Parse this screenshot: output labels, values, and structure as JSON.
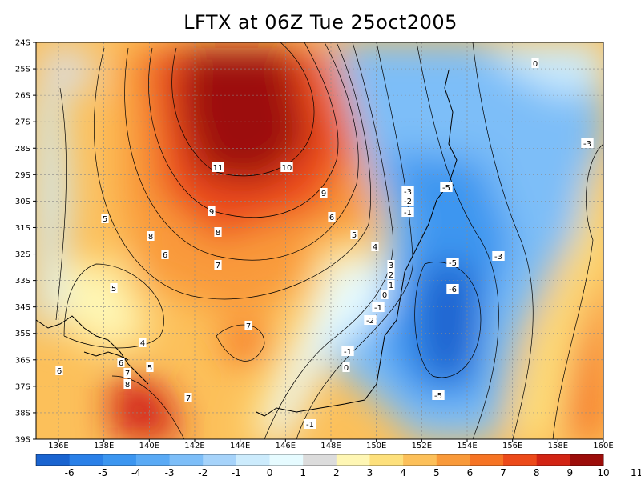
{
  "title": "LFTX at 06Z Tue 25oct2005",
  "axes": {
    "lat_labels": [
      "24S",
      "25S",
      "26S",
      "27S",
      "28S",
      "29S",
      "30S",
      "31S",
      "32S",
      "33S",
      "34S",
      "35S",
      "36S",
      "37S",
      "38S",
      "39S"
    ],
    "lon_labels": [
      "136E",
      "138E",
      "140E",
      "142E",
      "144E",
      "146E",
      "148E",
      "150E",
      "152E",
      "154E",
      "156E",
      "158E",
      "160E"
    ]
  },
  "colorbar": {
    "colors": [
      "#1a64d0",
      "#2a80e8",
      "#3c96f0",
      "#5aaaf5",
      "#7dbef8",
      "#a6d3fa",
      "#ccebfc",
      "#e6fbff",
      "#dcdcdc",
      "#fef6b4",
      "#fde07c",
      "#fcc05a",
      "#f99a3a",
      "#f67424",
      "#ec4a1a",
      "#d22414",
      "#9c0d0a"
    ],
    "labels": [
      "-6",
      "-5",
      "-4",
      "-3",
      "-2",
      "-1",
      "0",
      "1",
      "2",
      "3",
      "4",
      "5",
      "6",
      "7",
      "8",
      "9",
      "10",
      "11"
    ]
  },
  "contour_labels": [
    "11",
    "10",
    "9",
    "9",
    "8",
    "7",
    "6",
    "5",
    "4",
    "3",
    "2",
    "1",
    "0",
    "-1",
    "-2",
    "-3",
    "-2",
    "-1",
    "-5",
    "-5",
    "-6",
    "-3",
    "0",
    "-3",
    "5",
    "8",
    "6",
    "7",
    "5",
    "4",
    "6",
    "7",
    "8",
    "5",
    "6",
    "7",
    "-1",
    "0",
    "-5",
    "-1",
    "6"
  ],
  "colors": {
    "background": "#ffffff",
    "coastline": "#000000"
  }
}
